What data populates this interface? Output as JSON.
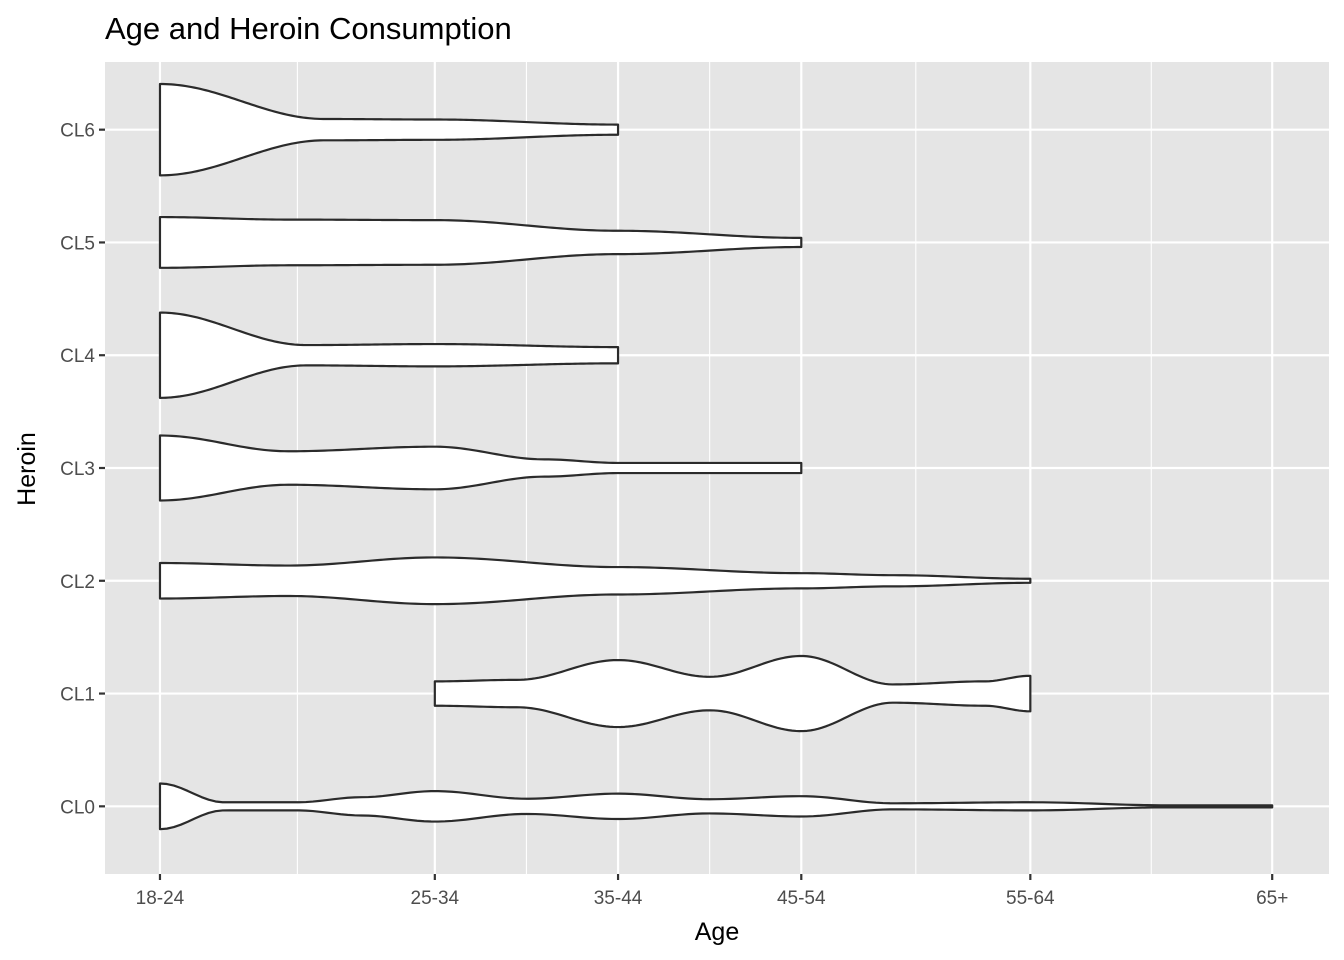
{
  "chart_data": {
    "type": "violin",
    "title": "Age and Heroin Consumption",
    "xlabel": "Age",
    "ylabel": "Heroin",
    "x_ticks": [
      "18-24",
      "25-34",
      "35-44",
      "45-54",
      "55-64",
      "65+"
    ],
    "x_tick_values": [
      1.0,
      2.5,
      3.5,
      4.5,
      5.75,
      7.07
    ],
    "xlim": [
      0.7,
      7.38
    ],
    "y_categories": [
      "CL0",
      "CL1",
      "CL2",
      "CL3",
      "CL4",
      "CL5",
      "CL6"
    ],
    "grid": true,
    "legend": "none",
    "colors": {
      "panel": "#e5e5e5",
      "violin_fill": "#ffffff",
      "violin_stroke": "#2b2b2b"
    },
    "violins": [
      {
        "category": "CL0",
        "range": [
          1.0,
          7.07
        ],
        "max_half_width": 0.45,
        "x": [
          1.0,
          1.35,
          1.75,
          2.1,
          2.5,
          3.0,
          3.5,
          4.0,
          4.5,
          5.0,
          5.75,
          6.5,
          7.07
        ],
        "width": [
          0.45,
          0.08,
          0.08,
          0.18,
          0.3,
          0.15,
          0.25,
          0.14,
          0.2,
          0.06,
          0.08,
          0.02,
          0.02
        ]
      },
      {
        "category": "CL1",
        "range": [
          2.5,
          5.75
        ],
        "max_half_width": 0.45,
        "x": [
          2.5,
          2.95,
          3.5,
          4.0,
          4.5,
          5.0,
          5.5,
          5.75
        ],
        "width": [
          0.24,
          0.27,
          0.66,
          0.33,
          0.74,
          0.18,
          0.24,
          0.35
        ]
      },
      {
        "category": "CL2",
        "range": [
          1.0,
          5.75
        ],
        "max_half_width": 0.45,
        "x": [
          1.0,
          1.7,
          2.5,
          3.5,
          4.5,
          5.0,
          5.75
        ],
        "width": [
          0.35,
          0.3,
          0.46,
          0.27,
          0.15,
          0.11,
          0.04
        ]
      },
      {
        "category": "CL3",
        "range": [
          1.0,
          4.5
        ],
        "max_half_width": 0.45,
        "x": [
          1.0,
          1.7,
          2.5,
          3.1,
          3.5,
          4.5
        ],
        "width": [
          0.64,
          0.33,
          0.42,
          0.17,
          0.1,
          0.1
        ]
      },
      {
        "category": "CL4",
        "range": [
          1.0,
          3.5
        ],
        "max_half_width": 0.45,
        "x": [
          1.0,
          1.8,
          2.5,
          3.5
        ],
        "width": [
          0.84,
          0.2,
          0.22,
          0.16
        ]
      },
      {
        "category": "CL5",
        "range": [
          1.0,
          4.5
        ],
        "max_half_width": 0.45,
        "x": [
          1.0,
          1.7,
          2.5,
          3.5,
          4.5
        ],
        "width": [
          0.5,
          0.45,
          0.44,
          0.23,
          0.09
        ]
      },
      {
        "category": "CL6",
        "range": [
          1.0,
          3.5
        ],
        "max_half_width": 0.45,
        "x": [
          1.0,
          1.9,
          2.5,
          3.5
        ],
        "width": [
          0.9,
          0.21,
          0.2,
          0.1
        ]
      }
    ]
  }
}
